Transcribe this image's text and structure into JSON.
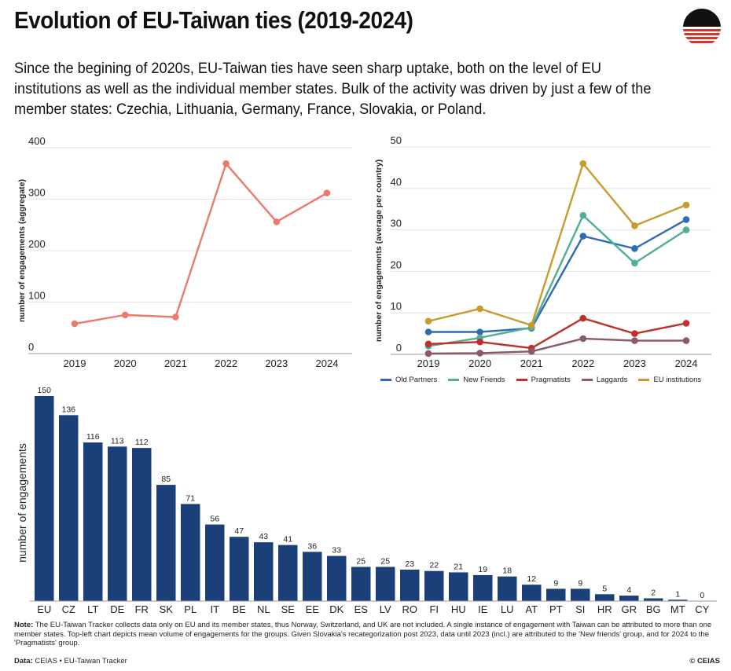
{
  "header": {
    "title": "Evolution of EU-Taiwan ties (2019-2024)",
    "subtitle": "Since the begining of 2020s, EU-Taiwan ties have seen sharp uptake, both on the level of EU institutions as well as the individual member states. Bulk of the activity was driven by just a few of the member states: Czechia, Lithuania, Germany, France, Slovakia, or Poland."
  },
  "footer": {
    "note_label": "Note:",
    "note_text": "The EU-Taiwan Tracker collects data only on EU and its member states, thus Norway, Switzerland, and UK are not included. A single instance of engagement with Taiwan can be attributed to more than one member states. Top-left chart depicts mean volume of engagements for the groups. Given Slovakia's recategorization post 2023, data until 2023 (incl.) are attributed to the 'New friends' group, and for 2024 to the 'Pragmatists' group.",
    "data_label": "Data:",
    "data_text": "CEIAS • EU-Taiwan Tracker",
    "copyright": "© CEIAS"
  },
  "colors": {
    "aggregate_line": "#ec7a6c",
    "bar": "#1b3f78",
    "grid": "#e3e3e3",
    "logo_black": "#111111",
    "logo_red": "#d9342b"
  },
  "chart_data": [
    {
      "type": "line",
      "ylabel": "number of engagements (aggregate)",
      "xlabel": "",
      "x": [
        "2019",
        "2020",
        "2021",
        "2022",
        "2023",
        "2024"
      ],
      "yticks": [
        0,
        100,
        200,
        300,
        400
      ],
      "ylim": [
        0,
        400
      ],
      "grid": true,
      "series": [
        {
          "color": "#ec7a6c",
          "values": [
            58,
            75,
            71,
            369,
            256,
            312
          ]
        }
      ]
    },
    {
      "type": "line",
      "ylabel": "number of engagements (average per country)",
      "xlabel": "",
      "x": [
        "2019",
        "2020",
        "2021",
        "2022",
        "2023",
        "2024"
      ],
      "yticks": [
        0,
        10,
        20,
        30,
        40,
        50
      ],
      "ylim": [
        0,
        50
      ],
      "grid": true,
      "legend_position": "bottom",
      "series": [
        {
          "name": "Old Partners",
          "color": "#2f6bb5",
          "values": [
            5.4,
            5.4,
            6.3,
            28.5,
            25.5,
            32.5
          ]
        },
        {
          "name": "New Friends",
          "color": "#4fae96",
          "values": [
            2.0,
            4.0,
            6.5,
            33.5,
            22.0,
            30.0
          ]
        },
        {
          "name": "Pragmatists",
          "color": "#c0302b",
          "values": [
            2.5,
            3.0,
            1.5,
            8.7,
            5.0,
            7.5
          ]
        },
        {
          "name": "Laggards",
          "color": "#8a5a6a",
          "values": [
            0.2,
            0.3,
            0.7,
            3.8,
            3.3,
            3.3
          ]
        },
        {
          "name": "EU institutions",
          "color": "#c99a2c",
          "values": [
            8.0,
            11.0,
            7.0,
            46.0,
            31.0,
            36.0
          ]
        }
      ]
    },
    {
      "type": "bar",
      "ylabel": "number of engagements",
      "xlabel": "",
      "ylim": [
        0,
        150
      ],
      "grid": false,
      "categories": [
        "EU",
        "CZ",
        "LT",
        "DE",
        "FR",
        "SK",
        "PL",
        "IT",
        "BE",
        "NL",
        "SE",
        "EE",
        "DK",
        "ES",
        "LV",
        "RO",
        "FI",
        "HU",
        "IE",
        "LU",
        "AT",
        "PT",
        "SI",
        "HR",
        "GR",
        "BG",
        "MT",
        "CY"
      ],
      "values": [
        150,
        136,
        116,
        113,
        112,
        85,
        71,
        56,
        47,
        43,
        41,
        36,
        33,
        25,
        25,
        23,
        22,
        21,
        19,
        18,
        12,
        9,
        9,
        5,
        4,
        2,
        1,
        0
      ]
    }
  ]
}
